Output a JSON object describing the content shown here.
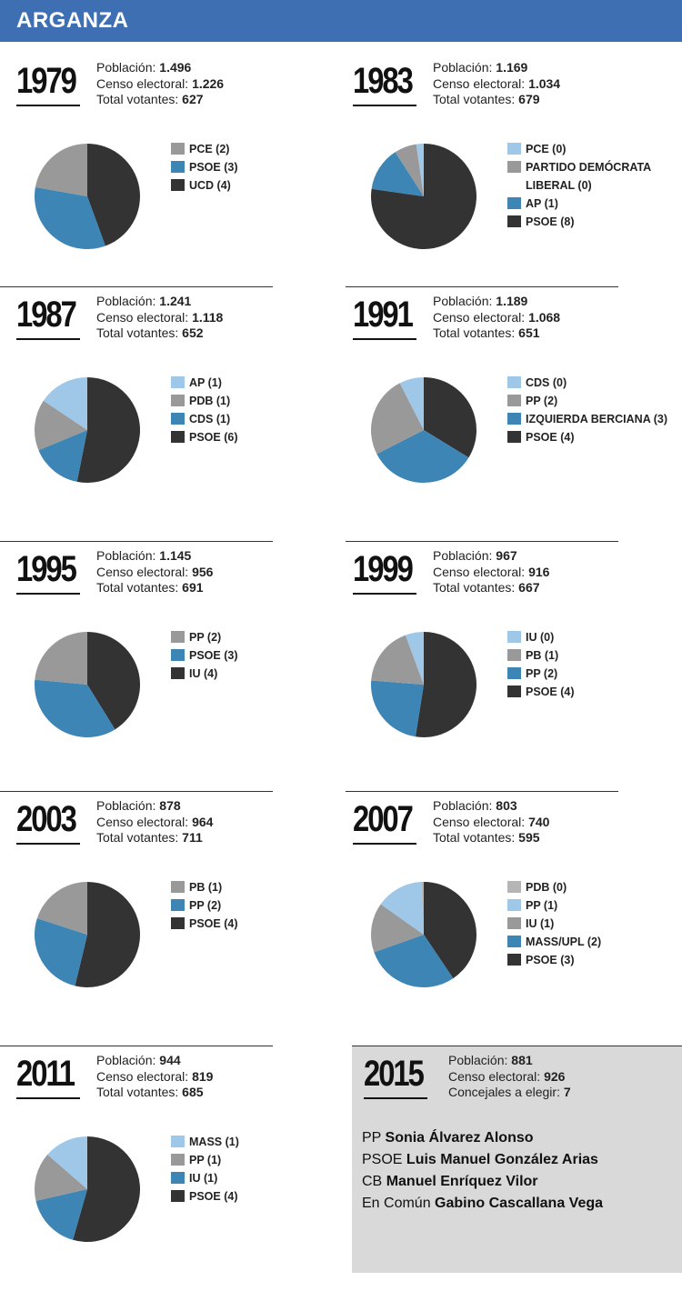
{
  "title": "ARGANZA",
  "labels": {
    "poblacion": "Población:",
    "censo": "Censo electoral:",
    "votantes": "Total votantes:",
    "concejales": "Concejales a elegir:"
  },
  "colors": {
    "dark": "#333333",
    "blue": "#3d85b5",
    "gray": "#999999",
    "lightblue": "#9fc8e8",
    "lightgray": "#b5b5b5"
  },
  "panels": [
    {
      "year": "1979",
      "poblacion": "1.496",
      "censo": "1.226",
      "votantes": "627"
    },
    {
      "year": "1983",
      "poblacion": "1.169",
      "censo": "1.034",
      "votantes": "679"
    },
    {
      "year": "1987",
      "poblacion": "1.241",
      "censo": "1.118",
      "votantes": "652"
    },
    {
      "year": "1991",
      "poblacion": "1.189",
      "censo": "1.068",
      "votantes": "651"
    },
    {
      "year": "1995",
      "poblacion": "1.145",
      "censo": "956",
      "votantes": "691"
    },
    {
      "year": "1999",
      "poblacion": "967",
      "censo": "916",
      "votantes": "667"
    },
    {
      "year": "2003",
      "poblacion": "878",
      "censo": "964",
      "votantes": "711"
    },
    {
      "year": "2007",
      "poblacion": "803",
      "censo": "740",
      "votantes": "595"
    },
    {
      "year": "2011",
      "poblacion": "944",
      "censo": "819",
      "votantes": "685"
    }
  ],
  "final": {
    "year": "2015",
    "poblacion": "881",
    "censo": "926",
    "concejales": "7",
    "candidates": [
      {
        "party": "PP",
        "name": "Sonia Álvarez Alonso"
      },
      {
        "party": "PSOE",
        "name": "Luis Manuel González Arias"
      },
      {
        "party": "CB",
        "name": "Manuel Enríquez Vilor"
      },
      {
        "party": "En Común",
        "name": "Gabino Cascallana Vega"
      }
    ]
  },
  "chart_data": [
    {
      "type": "pie",
      "year": "1979",
      "slices": [
        {
          "label": "PCE (2)",
          "value": 2,
          "color": "#999999"
        },
        {
          "label": "PSOE (3)",
          "value": 3,
          "color": "#3d85b5"
        },
        {
          "label": "UCD (4)",
          "value": 4,
          "color": "#333333"
        }
      ],
      "draw_order": [
        "UCD (4)",
        "PSOE (3)",
        "PCE (2)"
      ]
    },
    {
      "type": "pie",
      "year": "1983",
      "slices": [
        {
          "label": "PCE (0)",
          "value": 0.25,
          "color": "#9fc8e8"
        },
        {
          "label": "PARTIDO DEMÓCRATA LIBERAL (0)",
          "value": 0.75,
          "color": "#999999"
        },
        {
          "label": "AP (1)",
          "value": 1.5,
          "color": "#3d85b5"
        },
        {
          "label": "PSOE (8)",
          "value": 8.5,
          "color": "#333333"
        }
      ],
      "draw_order": [
        "PSOE (8)",
        "AP (1)",
        "PARTIDO DEMÓCRATA LIBERAL (0)",
        "PCE (0)"
      ]
    },
    {
      "type": "pie",
      "year": "1987",
      "slices": [
        {
          "label": "AP (1)",
          "value": 1,
          "color": "#9fc8e8"
        },
        {
          "label": "PDB (1)",
          "value": 1,
          "color": "#999999"
        },
        {
          "label": "CDS (1)",
          "value": 1,
          "color": "#3d85b5"
        },
        {
          "label": "PSOE (6)",
          "value": 3.4,
          "color": "#333333"
        }
      ],
      "draw_order": [
        "PSOE (6)",
        "CDS (1)",
        "PDB (1)",
        "AP (1)"
      ]
    },
    {
      "type": "pie",
      "year": "1991",
      "slices": [
        {
          "label": "CDS (0)",
          "value": 0.6,
          "color": "#9fc8e8"
        },
        {
          "label": "PP (2)",
          "value": 2,
          "color": "#999999"
        },
        {
          "label": "IZQUIERDA BERCIANA (3)",
          "value": 2.7,
          "color": "#3d85b5"
        },
        {
          "label": "PSOE (4)",
          "value": 2.7,
          "color": "#333333"
        }
      ],
      "draw_order": [
        "PSOE (4)",
        "IZQUIERDA BERCIANA (3)",
        "PP (2)",
        "CDS (0)"
      ]
    },
    {
      "type": "pie",
      "year": "1995",
      "slices": [
        {
          "label": "PP (2)",
          "value": 2,
          "color": "#999999"
        },
        {
          "label": "PSOE (3)",
          "value": 3,
          "color": "#3d85b5"
        },
        {
          "label": "IU (4)",
          "value": 3.5,
          "color": "#333333"
        }
      ],
      "draw_order": [
        "IU (4)",
        "PSOE (3)",
        "PP (2)"
      ]
    },
    {
      "type": "pie",
      "year": "1999",
      "slices": [
        {
          "label": "IU (0)",
          "value": 0.45,
          "color": "#9fc8e8"
        },
        {
          "label": "PB (1)",
          "value": 1.45,
          "color": "#999999"
        },
        {
          "label": "PP (2)",
          "value": 1.9,
          "color": "#3d85b5"
        },
        {
          "label": "PSOE (4)",
          "value": 4.2,
          "color": "#333333"
        }
      ],
      "draw_order": [
        "PSOE (4)",
        "PP (2)",
        "PB (1)",
        "IU (0)"
      ]
    },
    {
      "type": "pie",
      "year": "2003",
      "slices": [
        {
          "label": "PB (1)",
          "value": 1.6,
          "color": "#999999"
        },
        {
          "label": "PP (2)",
          "value": 2.1,
          "color": "#3d85b5"
        },
        {
          "label": "PSOE (4)",
          "value": 4.3,
          "color": "#333333"
        }
      ],
      "draw_order": [
        "PSOE (4)",
        "PP (2)",
        "PB (1)"
      ]
    },
    {
      "type": "pie",
      "year": "2007",
      "slices": [
        {
          "label": "PDB (0)",
          "value": 0.05,
          "color": "#b5b5b5"
        },
        {
          "label": "PP (1)",
          "value": 1,
          "color": "#9fc8e8"
        },
        {
          "label": "IU (1)",
          "value": 1.05,
          "color": "#999999"
        },
        {
          "label": "MASS/UPL (2)",
          "value": 2,
          "color": "#3d85b5"
        },
        {
          "label": "PSOE (3)",
          "value": 2.8,
          "color": "#333333"
        }
      ],
      "draw_order": [
        "PSOE (3)",
        "MASS/UPL (2)",
        "IU (1)",
        "PP (1)",
        "PDB (0)"
      ]
    },
    {
      "type": "pie",
      "year": "2011",
      "slices": [
        {
          "label": "MASS (1)",
          "value": 1,
          "color": "#9fc8e8"
        },
        {
          "label": "PP (1)",
          "value": 1.1,
          "color": "#999999"
        },
        {
          "label": "IU (1)",
          "value": 1.25,
          "color": "#3d85b5"
        },
        {
          "label": "PSOE (4)",
          "value": 4,
          "color": "#333333"
        }
      ],
      "draw_order": [
        "PSOE (4)",
        "IU (1)",
        "PP (1)",
        "MASS (1)"
      ]
    }
  ]
}
